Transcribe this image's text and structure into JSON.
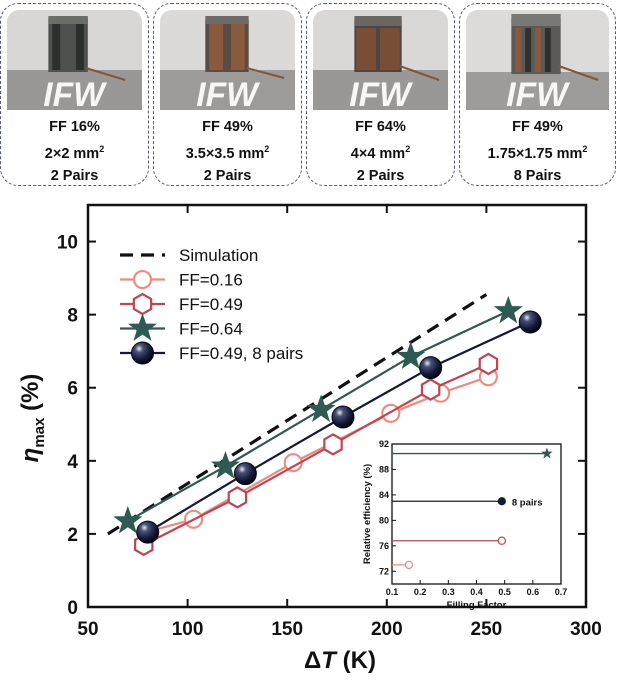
{
  "cards": [
    {
      "ff": "FF 16%",
      "size": "2×2 mm",
      "pairs": "2 Pairs",
      "logo": "IFW"
    },
    {
      "ff": "FF 49%",
      "size": "3.5×3.5 mm",
      "pairs": "2 Pairs",
      "logo": "IFW"
    },
    {
      "ff": "FF 64%",
      "size": "4×4 mm",
      "pairs": "2 Pairs",
      "logo": "IFW"
    },
    {
      "ff": "FF 49%",
      "size": "1.75×1.75 mm",
      "pairs": "8 Pairs",
      "logo": "IFW"
    }
  ],
  "units_sup": "2",
  "chart_data": [
    {
      "type": "line",
      "xlabel_delta": "Δ",
      "xlabel_var": "T",
      "xlabel_unit": " (K)",
      "ylabel_sym": "η",
      "ylabel_sub": "max",
      "ylabel_unit": " (%)",
      "xlim": [
        50,
        300
      ],
      "ylim": [
        0,
        11
      ],
      "xticks": [
        50,
        100,
        150,
        200,
        250,
        300
      ],
      "yticks": [
        0,
        2,
        4,
        6,
        8,
        10
      ],
      "legend_position": "top-left",
      "series": [
        {
          "name": "Simulation",
          "style": "dashed",
          "color": "#111111",
          "marker": "none",
          "x": [
            60,
            250
          ],
          "y": [
            2.0,
            8.55
          ]
        },
        {
          "name": "FF=0.16",
          "color": "#f08a80",
          "marker": "circle-open",
          "x": [
            79,
            103,
            153,
            202,
            227,
            251
          ],
          "y": [
            2.05,
            2.4,
            3.95,
            5.3,
            5.85,
            6.3
          ]
        },
        {
          "name": "FF=0.49",
          "color": "#c0454f",
          "marker": "hexagon-open",
          "x": [
            78,
            125,
            173,
            222,
            251
          ],
          "y": [
            1.7,
            3.0,
            4.45,
            5.95,
            6.65
          ]
        },
        {
          "name": "FF=0.64",
          "color": "#2f5a54",
          "marker": "star",
          "x": [
            70,
            119,
            167,
            212,
            261
          ],
          "y": [
            2.35,
            3.85,
            5.4,
            6.85,
            8.1
          ]
        },
        {
          "name": "FF=0.49, 8 pairs",
          "color": "#141a38",
          "marker": "sphere",
          "x": [
            80,
            129,
            178,
            222,
            272
          ],
          "y": [
            2.05,
            3.65,
            5.2,
            6.55,
            7.8
          ]
        }
      ]
    },
    {
      "type": "scatter",
      "xlabel": "Filling Factor",
      "ylabel": "Relative efficiency (%)",
      "xlim": [
        0.1,
        0.7
      ],
      "ylim": [
        70,
        92
      ],
      "xticks": [
        0.1,
        0.2,
        0.3,
        0.4,
        0.5,
        0.6,
        0.7
      ],
      "yticks": [
        72,
        76,
        80,
        84,
        88,
        92
      ],
      "annotation": "8 pairs",
      "series": [
        {
          "color": "#f08a80",
          "marker": "circle-open",
          "x": [
            0.1,
            0.16
          ],
          "y": [
            73,
            73
          ]
        },
        {
          "color": "#c0454f",
          "marker": "circle-open",
          "x": [
            0.1,
            0.49
          ],
          "y": [
            76.8,
            76.8
          ]
        },
        {
          "color": "#141a38",
          "marker": "circle-filled",
          "x": [
            0.1,
            0.49
          ],
          "y": [
            83,
            83
          ]
        },
        {
          "color": "#2f5a54",
          "marker": "star",
          "x": [
            0.1,
            0.65
          ],
          "y": [
            90.5,
            90.5
          ]
        }
      ]
    }
  ]
}
